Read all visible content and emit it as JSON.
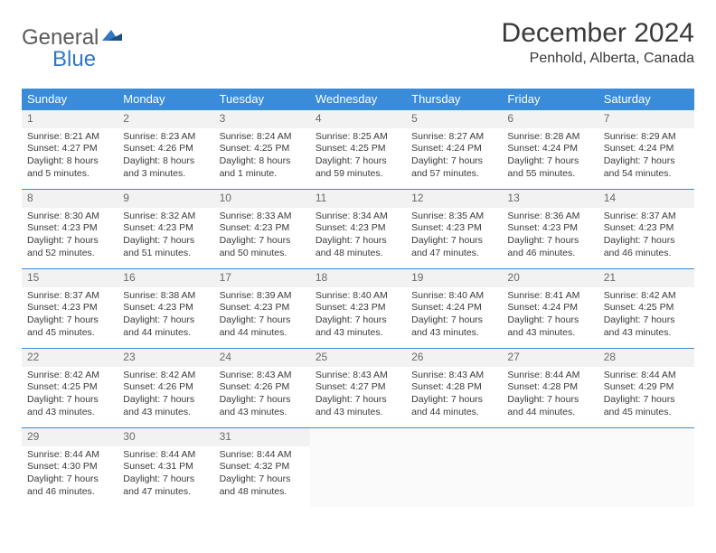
{
  "logo": {
    "word1": "General",
    "word2": "Blue"
  },
  "title": "December 2024",
  "location": "Penhold, Alberta, Canada",
  "styling": {
    "header_bg": "#3a8bd8",
    "header_fg": "#ffffff",
    "border_color": "#3a8bd8",
    "daynum_bg": "#f2f2f2",
    "page_bg": "#ffffff",
    "text_color": "#3a3a3a",
    "title_fontsize": 30,
    "location_fontsize": 16,
    "th_fontsize": 13,
    "cell_fontsize": 10.5
  },
  "weekdays": [
    "Sunday",
    "Monday",
    "Tuesday",
    "Wednesday",
    "Thursday",
    "Friday",
    "Saturday"
  ],
  "days": [
    {
      "n": 1,
      "sunrise": "8:21 AM",
      "sunset": "4:27 PM",
      "daylight": "8 hours and 5 minutes."
    },
    {
      "n": 2,
      "sunrise": "8:23 AM",
      "sunset": "4:26 PM",
      "daylight": "8 hours and 3 minutes."
    },
    {
      "n": 3,
      "sunrise": "8:24 AM",
      "sunset": "4:25 PM",
      "daylight": "8 hours and 1 minute."
    },
    {
      "n": 4,
      "sunrise": "8:25 AM",
      "sunset": "4:25 PM",
      "daylight": "7 hours and 59 minutes."
    },
    {
      "n": 5,
      "sunrise": "8:27 AM",
      "sunset": "4:24 PM",
      "daylight": "7 hours and 57 minutes."
    },
    {
      "n": 6,
      "sunrise": "8:28 AM",
      "sunset": "4:24 PM",
      "daylight": "7 hours and 55 minutes."
    },
    {
      "n": 7,
      "sunrise": "8:29 AM",
      "sunset": "4:24 PM",
      "daylight": "7 hours and 54 minutes."
    },
    {
      "n": 8,
      "sunrise": "8:30 AM",
      "sunset": "4:23 PM",
      "daylight": "7 hours and 52 minutes."
    },
    {
      "n": 9,
      "sunrise": "8:32 AM",
      "sunset": "4:23 PM",
      "daylight": "7 hours and 51 minutes."
    },
    {
      "n": 10,
      "sunrise": "8:33 AM",
      "sunset": "4:23 PM",
      "daylight": "7 hours and 50 minutes."
    },
    {
      "n": 11,
      "sunrise": "8:34 AM",
      "sunset": "4:23 PM",
      "daylight": "7 hours and 48 minutes."
    },
    {
      "n": 12,
      "sunrise": "8:35 AM",
      "sunset": "4:23 PM",
      "daylight": "7 hours and 47 minutes."
    },
    {
      "n": 13,
      "sunrise": "8:36 AM",
      "sunset": "4:23 PM",
      "daylight": "7 hours and 46 minutes."
    },
    {
      "n": 14,
      "sunrise": "8:37 AM",
      "sunset": "4:23 PM",
      "daylight": "7 hours and 46 minutes."
    },
    {
      "n": 15,
      "sunrise": "8:37 AM",
      "sunset": "4:23 PM",
      "daylight": "7 hours and 45 minutes."
    },
    {
      "n": 16,
      "sunrise": "8:38 AM",
      "sunset": "4:23 PM",
      "daylight": "7 hours and 44 minutes."
    },
    {
      "n": 17,
      "sunrise": "8:39 AM",
      "sunset": "4:23 PM",
      "daylight": "7 hours and 44 minutes."
    },
    {
      "n": 18,
      "sunrise": "8:40 AM",
      "sunset": "4:23 PM",
      "daylight": "7 hours and 43 minutes."
    },
    {
      "n": 19,
      "sunrise": "8:40 AM",
      "sunset": "4:24 PM",
      "daylight": "7 hours and 43 minutes."
    },
    {
      "n": 20,
      "sunrise": "8:41 AM",
      "sunset": "4:24 PM",
      "daylight": "7 hours and 43 minutes."
    },
    {
      "n": 21,
      "sunrise": "8:42 AM",
      "sunset": "4:25 PM",
      "daylight": "7 hours and 43 minutes."
    },
    {
      "n": 22,
      "sunrise": "8:42 AM",
      "sunset": "4:25 PM",
      "daylight": "7 hours and 43 minutes."
    },
    {
      "n": 23,
      "sunrise": "8:42 AM",
      "sunset": "4:26 PM",
      "daylight": "7 hours and 43 minutes."
    },
    {
      "n": 24,
      "sunrise": "8:43 AM",
      "sunset": "4:26 PM",
      "daylight": "7 hours and 43 minutes."
    },
    {
      "n": 25,
      "sunrise": "8:43 AM",
      "sunset": "4:27 PM",
      "daylight": "7 hours and 43 minutes."
    },
    {
      "n": 26,
      "sunrise": "8:43 AM",
      "sunset": "4:28 PM",
      "daylight": "7 hours and 44 minutes."
    },
    {
      "n": 27,
      "sunrise": "8:44 AM",
      "sunset": "4:28 PM",
      "daylight": "7 hours and 44 minutes."
    },
    {
      "n": 28,
      "sunrise": "8:44 AM",
      "sunset": "4:29 PM",
      "daylight": "7 hours and 45 minutes."
    },
    {
      "n": 29,
      "sunrise": "8:44 AM",
      "sunset": "4:30 PM",
      "daylight": "7 hours and 46 minutes."
    },
    {
      "n": 30,
      "sunrise": "8:44 AM",
      "sunset": "4:31 PM",
      "daylight": "7 hours and 47 minutes."
    },
    {
      "n": 31,
      "sunrise": "8:44 AM",
      "sunset": "4:32 PM",
      "daylight": "7 hours and 48 minutes."
    }
  ],
  "labels": {
    "sunrise": "Sunrise: ",
    "sunset": "Sunset: ",
    "daylight": "Daylight: "
  }
}
